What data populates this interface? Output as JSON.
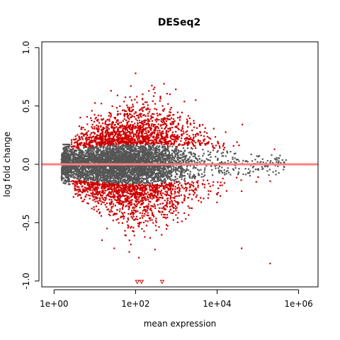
{
  "chart_data": {
    "type": "scatter",
    "title": "DESeq2",
    "xlabel": "mean expression",
    "ylabel": "log fold change",
    "x_scale": "log10",
    "xlim": [
      0.5,
      3000000
    ],
    "ylim": [
      -1.05,
      1.05
    ],
    "x_ticks": [
      1,
      100,
      10000,
      1000000
    ],
    "x_tick_labels": [
      "1e+00",
      "1e+02",
      "1e+04",
      "1e+06"
    ],
    "y_ticks": [
      -1.0,
      -0.5,
      0.0,
      0.5,
      1.0
    ],
    "y_tick_labels": [
      "-1.0",
      "-0.5",
      "0.0",
      "0.5",
      "1.0"
    ],
    "grid": false,
    "legend": "none",
    "reference_line": {
      "y": 0,
      "color": "#ff8080"
    },
    "colors": {
      "not_significant": "#555555",
      "significant": "#cc0000",
      "out_of_range": "#cc0000"
    },
    "series": [
      {
        "values_approx": "dense cloud of points, mean expression 1.5e+00 to 4e+05, log fold change mostly within -0.17 to 0.17",
        "x_range": [
          1.5,
          400000
        ],
        "y_range": [
          -0.17,
          0.17
        ]
      },
      {
        "values_approx": "significant genes forming two bands above and below the non-significant cloud",
        "x_range": [
          3,
          500000
        ],
        "y_range": [
          -0.85,
          0.78
        ],
        "points": [
          [
            100,
            0.78
          ],
          [
            500,
            0.69
          ],
          [
            25,
            0.63
          ],
          [
            700,
            0.6
          ],
          [
            150,
            0.6
          ],
          [
            3000,
            0.55
          ],
          [
            80,
            0.55
          ],
          [
            15,
            -0.65
          ],
          [
            30,
            -0.72
          ],
          [
            70,
            -0.75
          ],
          [
            300,
            -0.73
          ],
          [
            40000,
            -0.72
          ],
          [
            200000,
            -0.85
          ],
          [
            120,
            -0.8
          ],
          [
            20,
            -0.55
          ]
        ]
      },
      {
        "values_approx": "genes with log fold change below -1.0 drawn as triangles on the lower axis limit",
        "points": [
          [
            110,
            -1.0
          ],
          [
            140,
            -1.0
          ],
          [
            450,
            -1.0
          ]
        ]
      }
    ]
  }
}
